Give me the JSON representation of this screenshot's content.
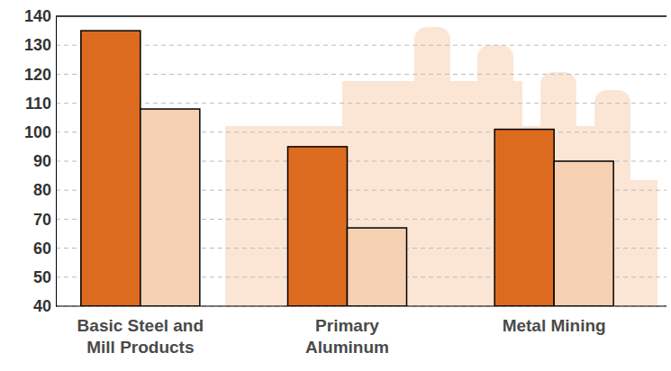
{
  "chart_data": {
    "type": "bar",
    "categories": [
      "Basic Steel and Mill Products",
      "Primary Aluminum",
      "Metal Mining"
    ],
    "series": [
      {
        "color": "#dd6b1f",
        "values": [
          135,
          95,
          101
        ]
      },
      {
        "color": "#f5d0b2",
        "values": [
          108,
          67,
          90
        ]
      }
    ],
    "ylim": [
      40,
      140
    ],
    "yticks": [
      40,
      50,
      60,
      70,
      80,
      90,
      100,
      110,
      120,
      130,
      140
    ],
    "grid": true
  }
}
